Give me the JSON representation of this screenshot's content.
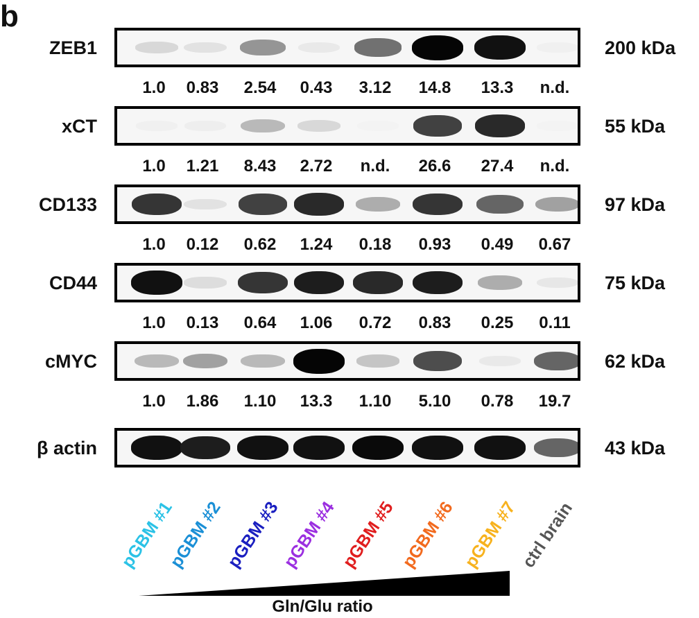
{
  "panel_letter": "b",
  "rows": [
    {
      "protein": "ZEB1",
      "size": "200 kDa",
      "values": [
        "1.0",
        "0.83",
        "2.54",
        "0.43",
        "3.12",
        "14.8",
        "13.3",
        "n.d."
      ],
      "intensity": [
        0.12,
        0.08,
        0.4,
        0.05,
        0.55,
        1.0,
        0.95,
        0.02
      ]
    },
    {
      "protein": "xCT",
      "size": "55 kDa",
      "values": [
        "1.0",
        "1.21",
        "8.43",
        "2.72",
        "n.d.",
        "26.6",
        "27.4",
        "n.d."
      ],
      "intensity": [
        0.02,
        0.03,
        0.25,
        0.12,
        0.01,
        0.75,
        0.85,
        0.01
      ]
    },
    {
      "protein": "CD133",
      "size": "97 kDa",
      "values": [
        "1.0",
        "0.12",
        "0.62",
        "1.24",
        "0.18",
        "0.93",
        "0.49",
        "0.67"
      ],
      "intensity": [
        0.8,
        0.08,
        0.75,
        0.85,
        0.3,
        0.8,
        0.6,
        0.35
      ]
    },
    {
      "protein": "CD44",
      "size": "75 kDa",
      "values": [
        "1.0",
        "0.13",
        "0.64",
        "1.06",
        "0.72",
        "0.83",
        "0.25",
        "0.11"
      ],
      "intensity": [
        0.95,
        0.1,
        0.8,
        0.9,
        0.85,
        0.9,
        0.3,
        0.06
      ]
    },
    {
      "protein": "cMYC",
      "size": "62 kDa",
      "values": [
        "1.0",
        "1.86",
        "1.10",
        "13.3",
        "1.10",
        "5.10",
        "0.78",
        "19.7"
      ],
      "intensity": [
        0.25,
        0.35,
        0.25,
        1.0,
        0.2,
        0.7,
        0.05,
        0.6
      ]
    },
    {
      "protein": "β actin",
      "size": "43 kDa",
      "values": [],
      "intensity": [
        0.95,
        0.9,
        0.95,
        0.95,
        0.98,
        0.95,
        0.95,
        0.6
      ]
    }
  ],
  "lanes": [
    {
      "label": "pGBM #1",
      "color": "#2bc2e6"
    },
    {
      "label": "pGBM #2",
      "color": "#1a8fd6"
    },
    {
      "label": "pGBM #3",
      "color": "#1a1fc0"
    },
    {
      "label": "pGBM #4",
      "color": "#9b2fe0"
    },
    {
      "label": "pGBM #5",
      "color": "#e01e1e"
    },
    {
      "label": "pGBM #6",
      "color": "#f26a1e"
    },
    {
      "label": "pGBM #7",
      "color": "#f7b21e"
    },
    {
      "label": "ctrl brain",
      "color": "#555555"
    }
  ],
  "ratio_label": "Gln/Glu ratio"
}
